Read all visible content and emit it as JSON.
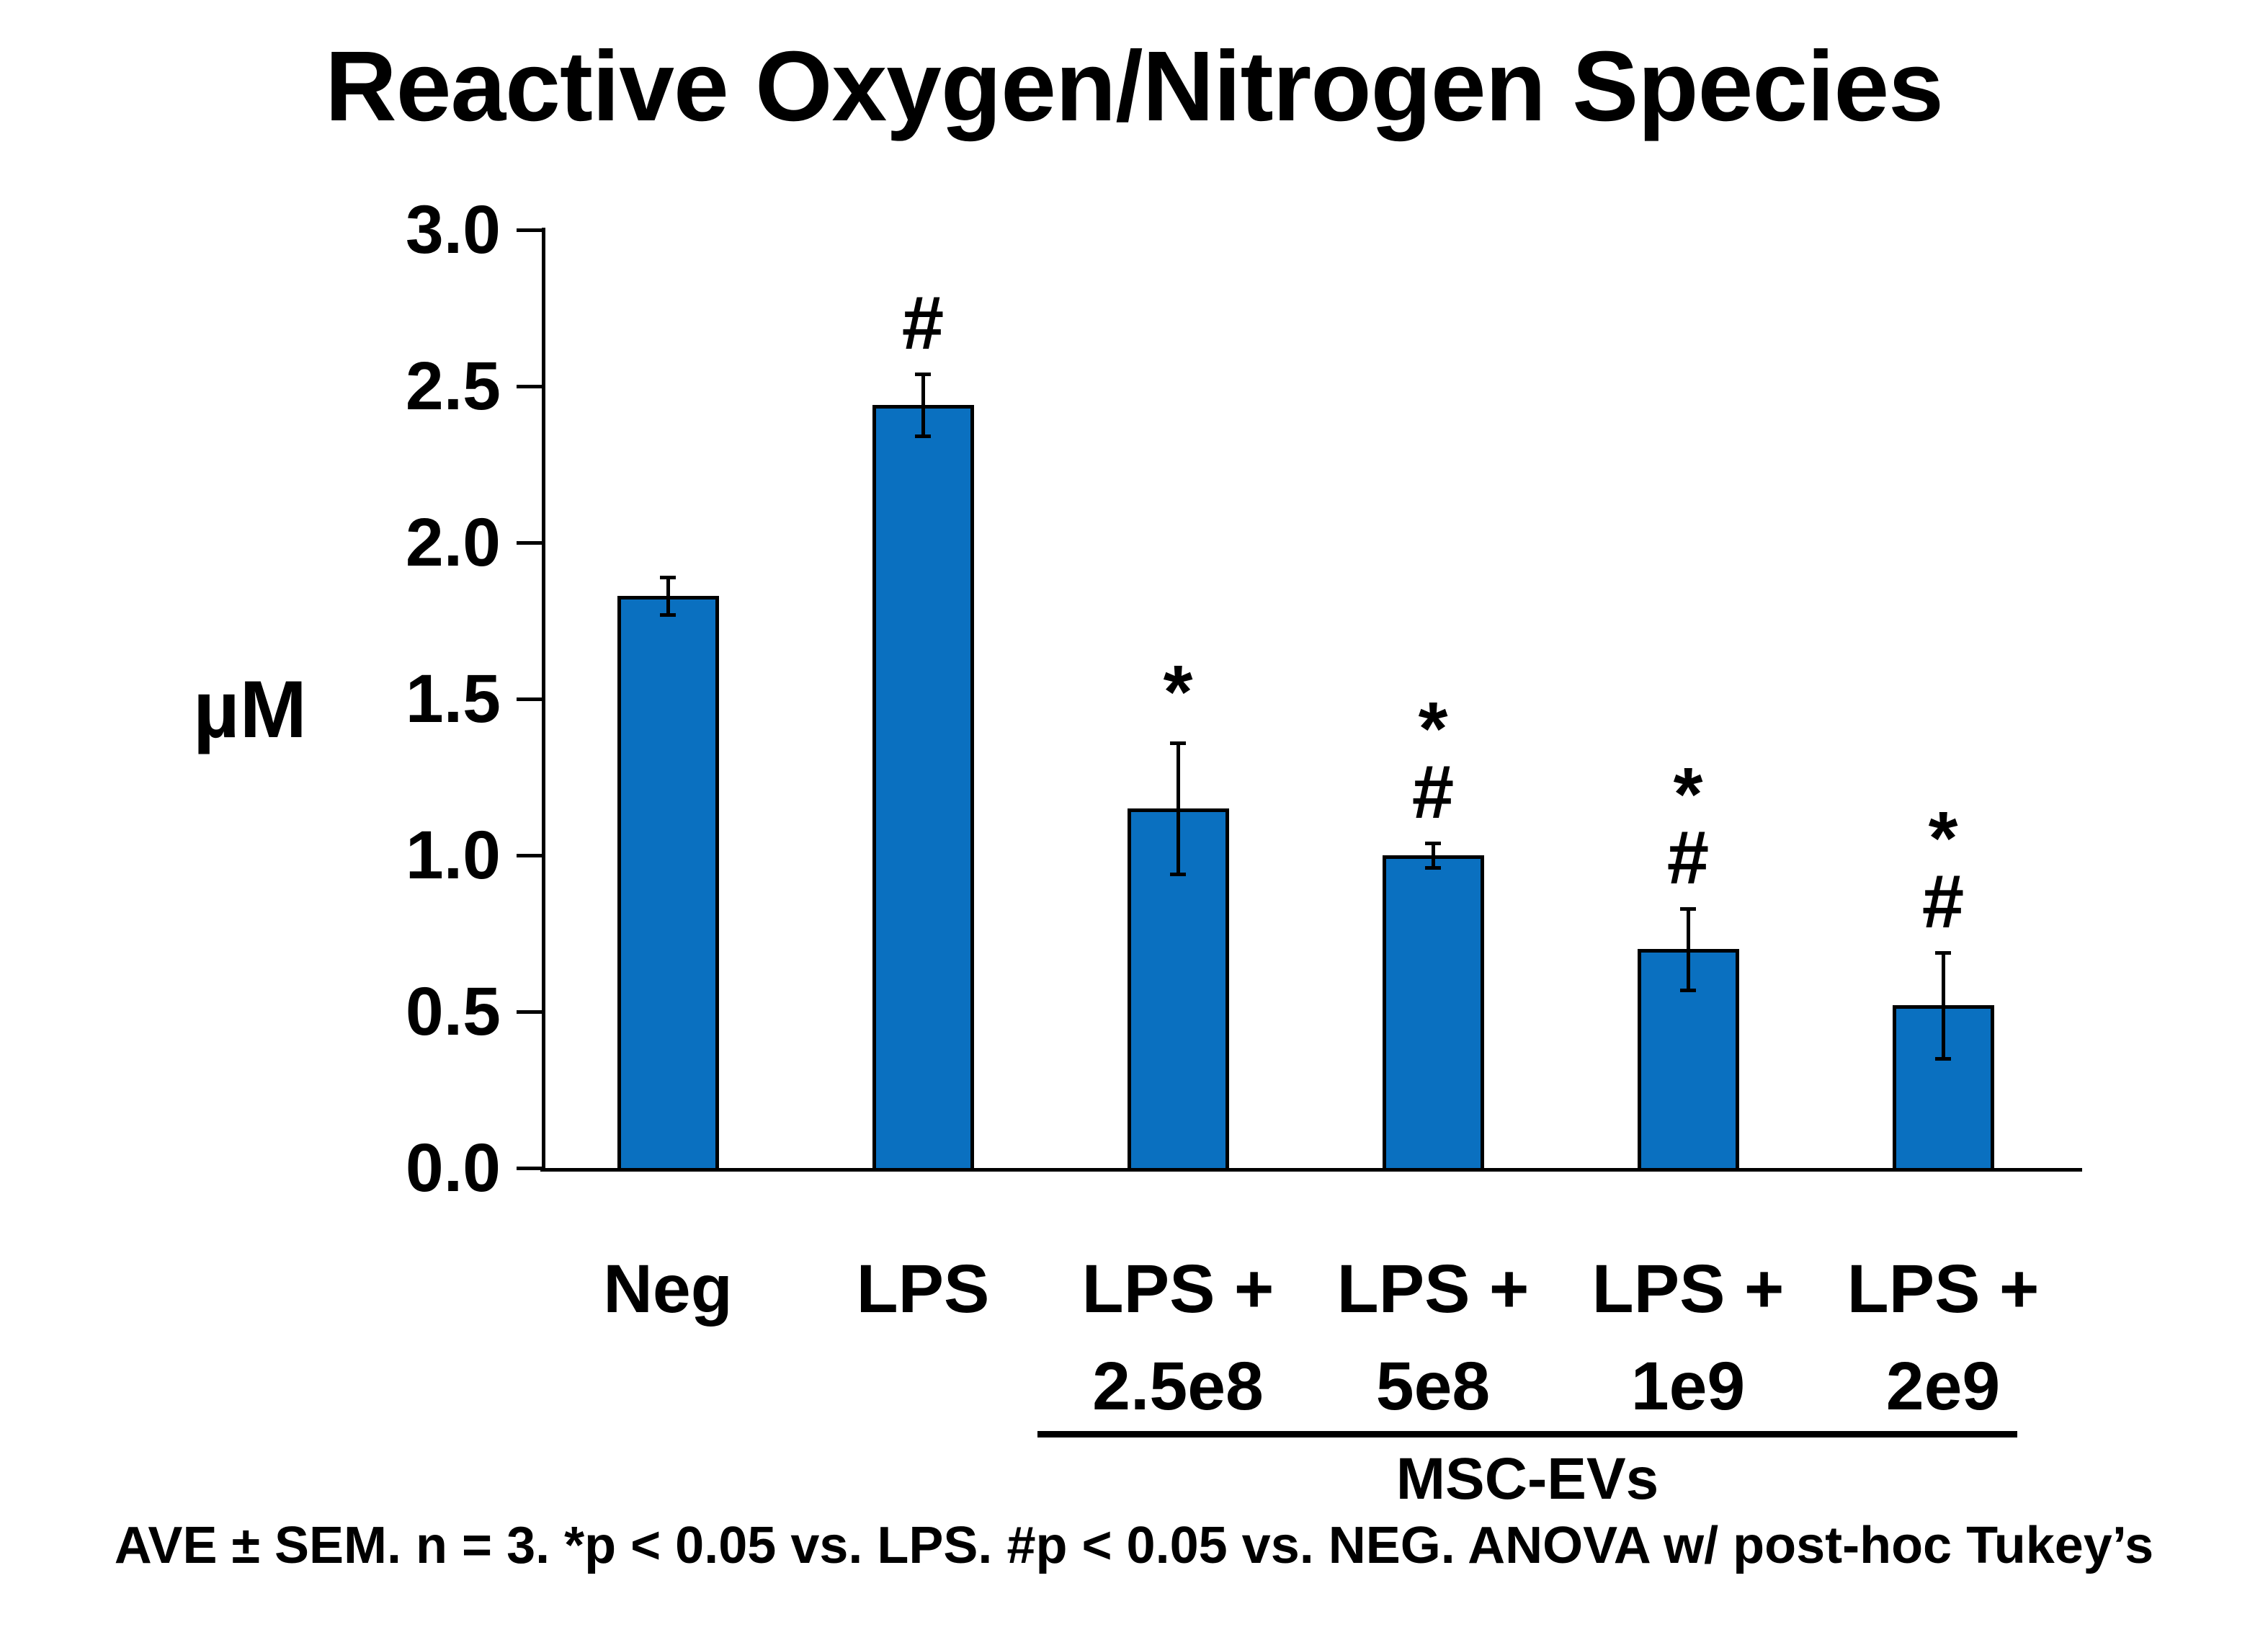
{
  "chart_data": {
    "type": "bar",
    "title": "Reactive Oxygen/Nitrogen Species",
    "ylabel": "µM",
    "xlabel": "",
    "ylim": [
      0.0,
      3.0
    ],
    "ytick_step": 0.5,
    "ytick_labels": [
      "3.0",
      "2.5",
      "2.0",
      "1.5",
      "1.0",
      "0.5",
      "0.0"
    ],
    "grid": "off",
    "legend": "none",
    "categories": [
      "Neg",
      "LPS",
      "LPS + 2.5e8",
      "LPS + 5e8",
      "LPS + 1e9",
      "LPS + 2e9"
    ],
    "category_label_lines": [
      [
        "Neg"
      ],
      [
        "LPS"
      ],
      [
        "LPS +",
        "2.5e8"
      ],
      [
        "LPS +",
        "5e8"
      ],
      [
        "LPS +",
        "1e9"
      ],
      [
        "LPS +",
        "2e9"
      ]
    ],
    "values": [
      1.83,
      2.44,
      1.15,
      1.0,
      0.7,
      0.52
    ],
    "errors_sem": [
      0.06,
      0.1,
      0.21,
      0.04,
      0.13,
      0.17
    ],
    "significance_marks": [
      [],
      [
        "#"
      ],
      [
        "*"
      ],
      [
        "*",
        "#"
      ],
      [
        "*",
        "#"
      ],
      [
        "*",
        "#"
      ]
    ],
    "bar_fill_color": "#0a70c0",
    "bar_border_color": "#000000",
    "group_label": "MSC-EVs",
    "group_span_categories": [
      "LPS + 2.5e8",
      "LPS + 5e8",
      "LPS + 1e9",
      "LPS + 2e9"
    ],
    "footnote": "AVE ± SEM. n = 3. *p < 0.05 vs. LPS. #p < 0.05 vs. NEG. ANOVA w/ post-hoc Tukey’s"
  }
}
